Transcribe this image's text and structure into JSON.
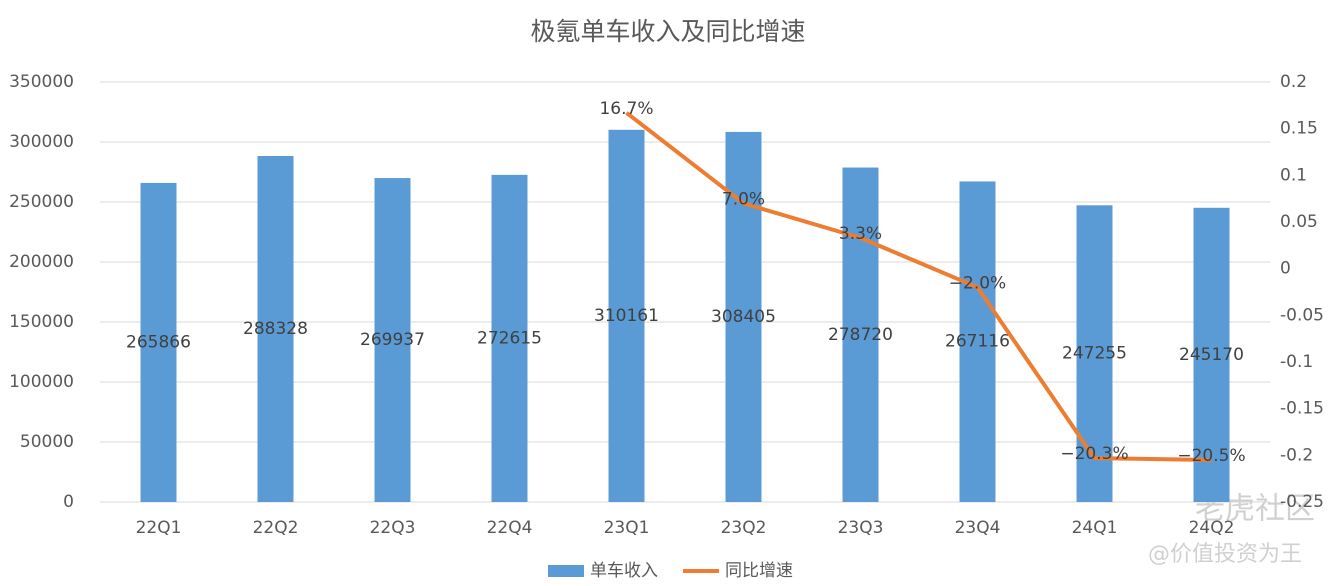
{
  "chart_data": {
    "type": "bar",
    "title": "极氪单车收入及同比增速",
    "categories": [
      "22Q1",
      "22Q2",
      "22Q3",
      "22Q4",
      "23Q1",
      "23Q2",
      "23Q3",
      "23Q4",
      "24Q1",
      "24Q2"
    ],
    "series": [
      {
        "name": "单车收入",
        "type": "bar",
        "color": "#5b9bd5",
        "values": [
          265866,
          288328,
          269937,
          272615,
          310161,
          308405,
          278720,
          267116,
          247255,
          245170
        ]
      },
      {
        "name": "同比增速",
        "type": "line",
        "axis": "y2",
        "color": "#ed7d31",
        "values": [
          null,
          null,
          null,
          null,
          0.167,
          0.07,
          0.033,
          -0.02,
          -0.203,
          -0.205
        ],
        "value_labels": [
          null,
          null,
          null,
          null,
          "16.7%",
          "7.0%",
          "3.3%",
          "−2.0%",
          "−20.3%",
          "−20.5%"
        ]
      }
    ],
    "ylim": [
      0,
      350000
    ],
    "yticks": [
      0,
      50000,
      100000,
      150000,
      200000,
      250000,
      300000,
      350000
    ],
    "y2lim": [
      -0.25,
      0.2
    ],
    "y2ticks": [
      -0.25,
      -0.2,
      -0.15,
      -0.1,
      -0.05,
      0,
      0.05,
      0.1,
      0.15,
      0.2
    ],
    "grid": true,
    "legend": "bottom",
    "watermark": [
      "老虎社区",
      "@价值投资为王"
    ]
  }
}
